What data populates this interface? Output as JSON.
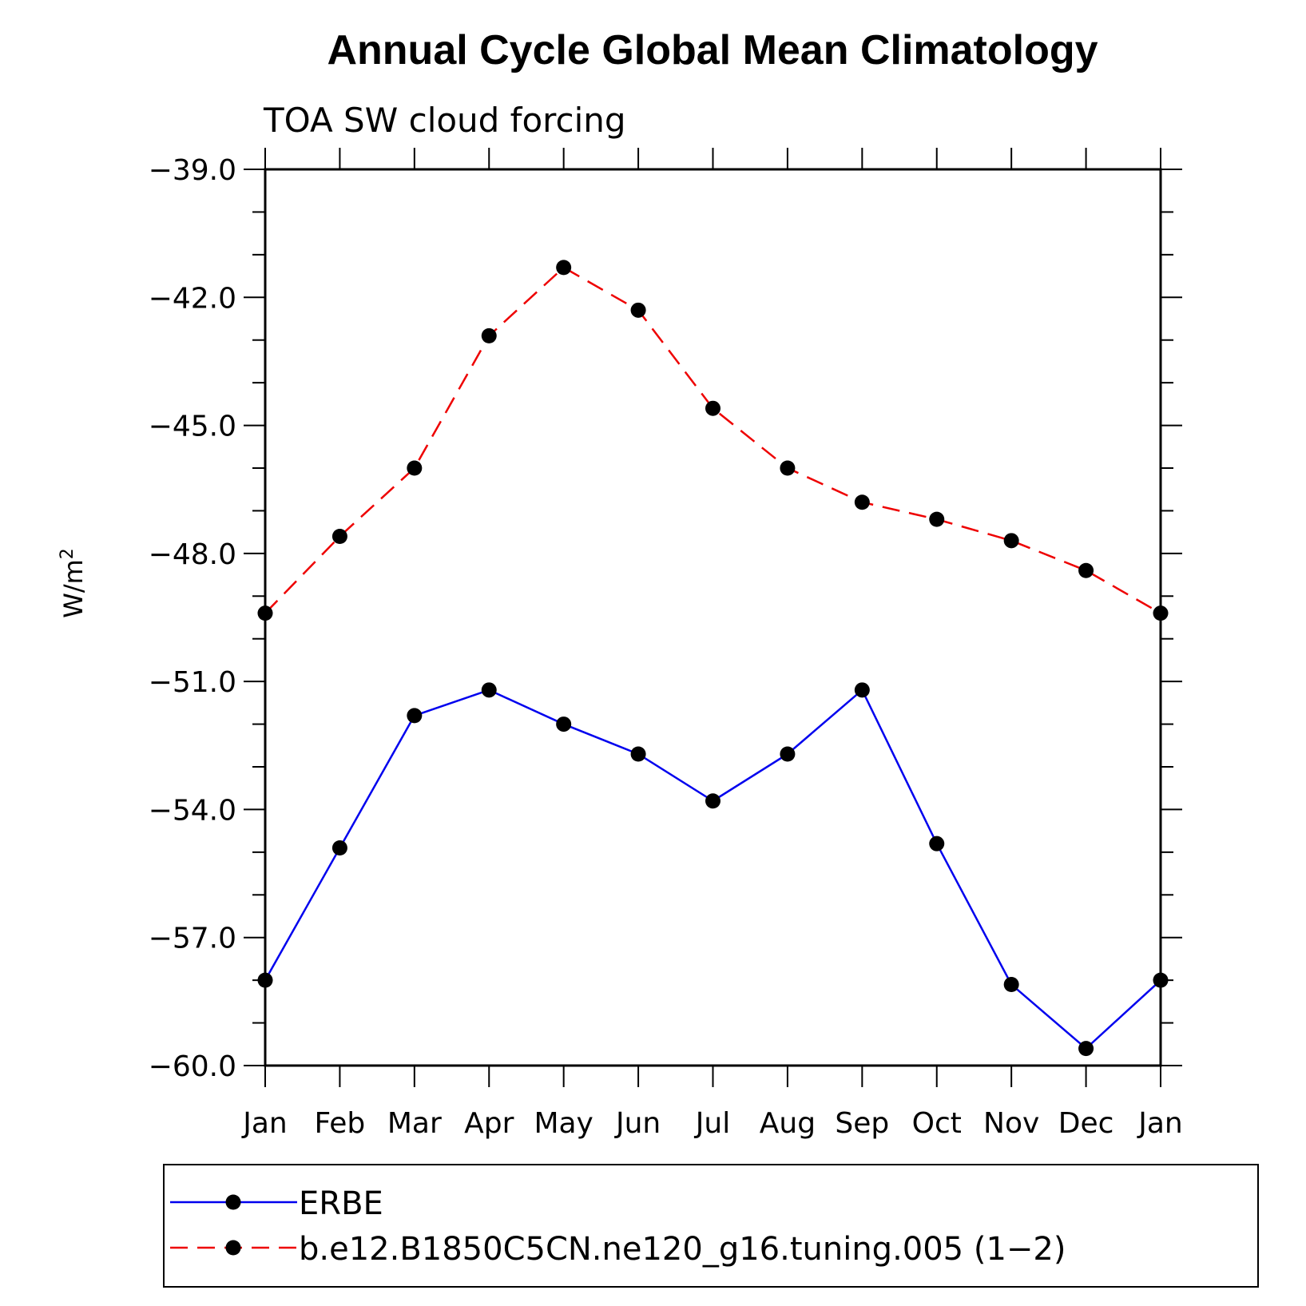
{
  "chart_data": {
    "type": "line",
    "title": "Annual Cycle Global Mean Climatology",
    "subtitle": "TOA SW cloud forcing",
    "xlabel": "",
    "ylabel": "W/m",
    "ylabel_superscript": "2",
    "ylim": [
      -60.0,
      -39.0
    ],
    "yticks": [
      "−39.0",
      "−42.0",
      "−45.0",
      "−48.0",
      "−51.0",
      "−54.0",
      "−57.0",
      "−60.0"
    ],
    "ytick_values": [
      -39,
      -42,
      -45,
      -48,
      -51,
      -54,
      -57,
      -60
    ],
    "categories": [
      "Jan",
      "Feb",
      "Mar",
      "Apr",
      "May",
      "Jun",
      "Jul",
      "Aug",
      "Sep",
      "Oct",
      "Nov",
      "Dec",
      "Jan"
    ],
    "series": [
      {
        "name": "ERBE",
        "color": "#0000ee",
        "style": "solid",
        "values": [
          -58.0,
          -54.9,
          -51.8,
          -51.2,
          -52.0,
          -52.7,
          -53.8,
          -52.7,
          -51.2,
          -54.8,
          -58.1,
          -59.6,
          -58.0
        ]
      },
      {
        "name": "b.e12.B1850C5CN.ne120_g16.tuning.005 (1−2)",
        "color": "#ee0000",
        "style": "dashed",
        "values": [
          -49.4,
          -47.6,
          -46.0,
          -42.9,
          -41.3,
          -42.3,
          -44.6,
          -46.0,
          -46.8,
          -47.2,
          -47.7,
          -48.4,
          -49.4
        ]
      }
    ],
    "legend_position": "bottom"
  }
}
